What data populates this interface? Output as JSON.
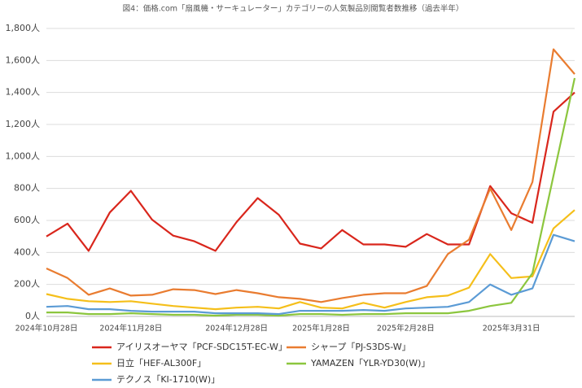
{
  "chart_data": {
    "type": "line",
    "title": "図4：価格.com「扇風機・サーキュレーター」カテゴリーの人気製品別閲覧者数推移（過去半年）",
    "categories": [
      "2024年10月28日",
      null,
      null,
      null,
      "2024年11月28日",
      null,
      null,
      null,
      null,
      "2024年12月28日",
      null,
      null,
      null,
      "2025年1月28日",
      null,
      null,
      null,
      "2025年2月28日",
      null,
      null,
      null,
      null,
      "2025年3月31日",
      null,
      null,
      null
    ],
    "series": [
      {
        "name": "アイリスオーヤマ「PCF-SDC15T-EC-W」",
        "color": "#d9261c",
        "values": [
          500,
          580,
          410,
          650,
          785,
          605,
          505,
          470,
          410,
          590,
          740,
          635,
          455,
          425,
          540,
          450,
          450,
          435,
          515,
          450,
          450,
          815,
          645,
          585,
          1280,
          1400
        ]
      },
      {
        "name": "シャープ「PJ-S3DS-W」",
        "color": "#e97c30",
        "values": [
          300,
          240,
          135,
          175,
          130,
          135,
          170,
          165,
          140,
          165,
          145,
          120,
          110,
          90,
          115,
          135,
          145,
          145,
          190,
          390,
          480,
          800,
          540,
          840,
          1670,
          1515
        ]
      },
      {
        "name": "日立「HEF-AL300F」",
        "color": "#f5bf1a",
        "values": [
          140,
          110,
          95,
          90,
          95,
          80,
          65,
          55,
          45,
          55,
          60,
          50,
          90,
          55,
          50,
          85,
          55,
          90,
          120,
          130,
          180,
          390,
          240,
          250,
          550,
          665
        ]
      },
      {
        "name": "YAMAZEN「YLR-YD30(W)」",
        "color": "#8cc63e",
        "values": [
          25,
          25,
          15,
          15,
          20,
          15,
          10,
          10,
          5,
          10,
          10,
          5,
          15,
          15,
          10,
          15,
          15,
          20,
          20,
          20,
          35,
          65,
          85,
          270,
          880,
          1490
        ]
      },
      {
        "name": "テクノス「KI-1710(W)」",
        "color": "#5b9bd5",
        "values": [
          60,
          65,
          45,
          45,
          35,
          30,
          30,
          30,
          20,
          20,
          20,
          15,
          35,
          35,
          35,
          40,
          35,
          50,
          55,
          60,
          90,
          200,
          135,
          175,
          510,
          470
        ]
      }
    ],
    "ylim": [
      0,
      1800
    ],
    "yticks": [
      {
        "value": 0,
        "label": "0人"
      },
      {
        "value": 200,
        "label": "200人"
      },
      {
        "value": 400,
        "label": "400人"
      },
      {
        "value": 600,
        "label": "600人"
      },
      {
        "value": 800,
        "label": "800人"
      },
      {
        "value": 1000,
        "label": "1,000人"
      },
      {
        "value": 1200,
        "label": "1,200人"
      },
      {
        "value": 1400,
        "label": "1,400人"
      },
      {
        "value": 1600,
        "label": "1,600人"
      },
      {
        "value": 1800,
        "label": "1,800人"
      }
    ],
    "grid": true,
    "legend": "bottom"
  }
}
